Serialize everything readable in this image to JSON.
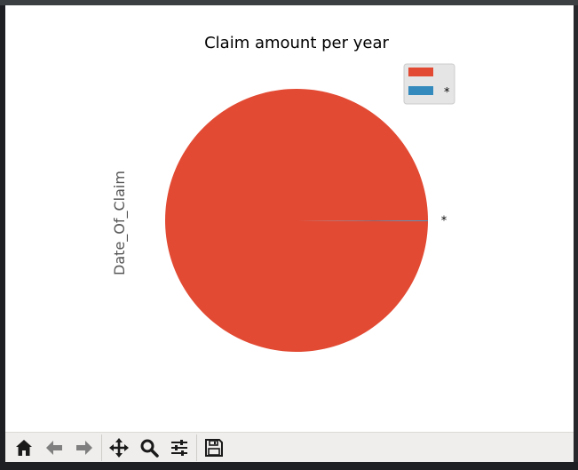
{
  "chart_data": {
    "type": "pie",
    "title": "Claim amount per year",
    "ylabel": "Date_Of_Claim",
    "slices": [
      {
        "label": "",
        "value": 99.9,
        "color": "#e24a33"
      },
      {
        "label": "*",
        "value": 0.1,
        "color": "#348abd"
      }
    ],
    "legend": {
      "placement": "top-right",
      "entries": [
        {
          "label": "",
          "color": "#e24a33"
        },
        {
          "label": "*",
          "color": "#348abd"
        }
      ]
    }
  },
  "toolbar": {
    "buttons": [
      {
        "name": "home-button",
        "icon": "home-icon"
      },
      {
        "name": "back-button",
        "icon": "arrow-left-icon"
      },
      {
        "name": "forward-button",
        "icon": "arrow-right-icon"
      },
      {
        "name": "pan-button",
        "icon": "move-icon"
      },
      {
        "name": "zoom-button",
        "icon": "magnifier-icon"
      },
      {
        "name": "configure-subplots-button",
        "icon": "sliders-icon"
      },
      {
        "name": "save-button",
        "icon": "floppy-disk-icon"
      }
    ]
  }
}
